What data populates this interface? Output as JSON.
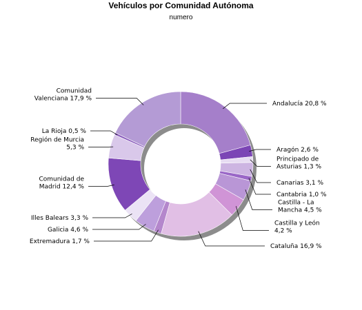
{
  "chart_data": {
    "type": "pie",
    "title": "Vehículos por Comunidad Autónoma",
    "subtitle": "numero",
    "slices": [
      {
        "lines": [
          "Andalucía 20,8 %"
        ],
        "value": 20.8,
        "color": "#a57fca"
      },
      {
        "lines": [
          "Aragón 2,6 %"
        ],
        "value": 2.6,
        "color": "#7b45b5"
      },
      {
        "lines": [
          "Principado de",
          "Asturias 1,3 %"
        ],
        "value": 1.3,
        "color": "#e7dcf2"
      },
      {
        "lines": [
          "Canarias 3,1 %"
        ],
        "value": 3.1,
        "color": "#cdb5e2"
      },
      {
        "lines": [
          "Cantabria 1,0 %"
        ],
        "value": 1.0,
        "color": "#9a67c7"
      },
      {
        "lines": [
          "Castilla - La",
          "Mancha 4,5 %"
        ],
        "value": 4.5,
        "color": "#b996d6"
      },
      {
        "lines": [
          "Castilla y León",
          "4,2 %"
        ],
        "value": 4.2,
        "color": "#d094d6"
      },
      {
        "lines": [
          "Cataluña 16,9 %"
        ],
        "value": 16.9,
        "color": "#e1bfe5"
      },
      {
        "lines": [
          "Extremadura 1,7 %"
        ],
        "value": 1.7,
        "color": "#b487cc"
      },
      {
        "lines": [
          "Galicia 4,6 %"
        ],
        "value": 4.6,
        "color": "#bd9fdc"
      },
      {
        "lines": [
          "Illes Balears 3,3 %"
        ],
        "value": 3.3,
        "color": "#ebe3f5"
      },
      {
        "lines": [
          "Comunidad de",
          "Madrid 12,4 %"
        ],
        "value": 12.4,
        "color": "#7e47b6"
      },
      {
        "lines": [
          "Región de Murcia",
          "5,3 %"
        ],
        "value": 5.3,
        "color": "#d9c8ea"
      },
      {
        "lines": [
          "La Rioja 0,5 %"
        ],
        "value": 0.5,
        "color": "#8c5fbd"
      },
      {
        "lines": [
          "Comunidad",
          "Valenciana 17,9 %"
        ],
        "value": 17.9,
        "color": "#b49bd5"
      }
    ]
  }
}
